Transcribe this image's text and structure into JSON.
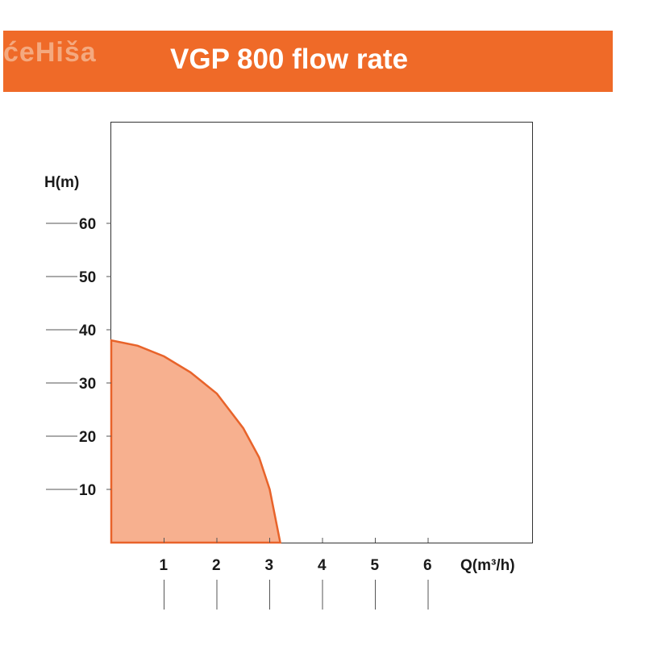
{
  "header": {
    "logo_text": "ćeHiša",
    "title": "VGP 800 flow rate"
  },
  "colors": {
    "banner": "#ef6a28",
    "curve_stroke": "#e8632a",
    "curve_fill": "#f7b08f",
    "axis": "#333333"
  },
  "chart_data": {
    "type": "area",
    "title": "VGP 800 flow rate",
    "xlabel": "Q(m³/h)",
    "ylabel": "H(m)",
    "xlim": [
      0,
      8
    ],
    "ylim": [
      0,
      80
    ],
    "x_ticks": [
      "1",
      "2",
      "3",
      "4",
      "5",
      "6"
    ],
    "y_ticks": [
      "10",
      "20",
      "30",
      "40",
      "50",
      "60"
    ],
    "grid": false,
    "series": [
      {
        "x": [
          0,
          0.5,
          1.0,
          1.5,
          2.0,
          2.5,
          2.8,
          3.0,
          3.2
        ],
        "y": [
          38,
          37,
          35,
          32,
          28,
          21.5,
          16,
          10,
          0
        ]
      }
    ]
  }
}
